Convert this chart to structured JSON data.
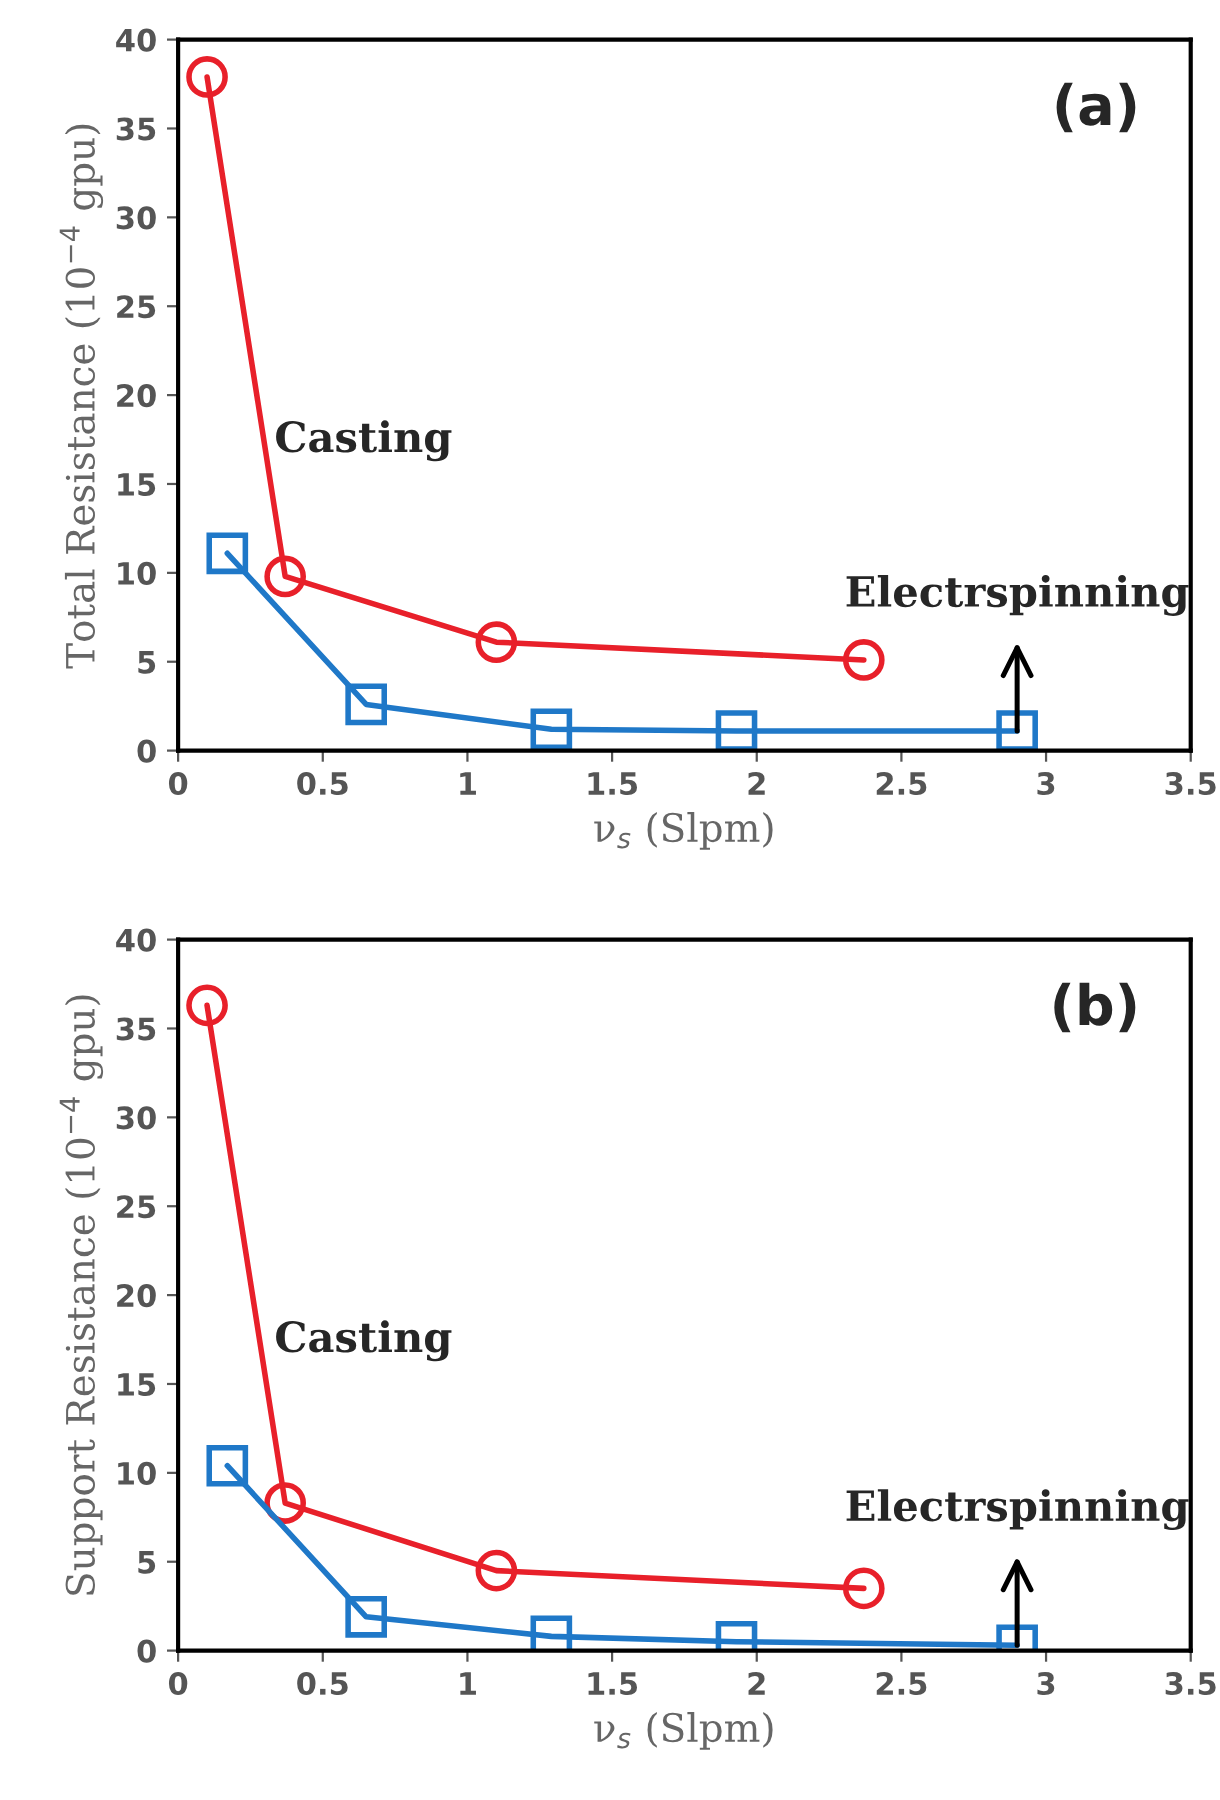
{
  "chart_data": [
    {
      "type": "line",
      "title": "(a)",
      "xlabel": "ν$_{s}$ (Slpm)",
      "ylabel": "Total Resistance (10$^{−4}$ gpu)",
      "xlim": [
        0,
        3.5
      ],
      "xticks": [
        0,
        0.5,
        1,
        1.5,
        2,
        2.5,
        3,
        3.5
      ],
      "ylim": [
        0,
        40
      ],
      "yticks": [
        0,
        5,
        10,
        15,
        20,
        25,
        30,
        35,
        40
      ],
      "grid": false,
      "legend": false,
      "series": [
        {
          "color": "#e8202a",
          "marker": "circle",
          "x": [
            0.1,
            0.37,
            1.1,
            2.37
          ],
          "values": [
            37.9,
            9.8,
            6.1,
            5.1
          ]
        },
        {
          "color": "#1f78c8",
          "marker": "square",
          "x": [
            0.17,
            0.65,
            1.29,
            1.93,
            2.9
          ],
          "values": [
            11.1,
            2.6,
            1.2,
            1.1,
            1.1
          ]
        }
      ],
      "annotations": [
        "Casting",
        {
          "text": "Electrspinning",
          "x": 2.9,
          "y": 1.1
        }
      ]
    },
    {
      "type": "line",
      "title": "(b)",
      "xlabel": "ν$_{s}$ (Slpm)",
      "ylabel": "Support Resistance (10$^{−4}$ gpu)",
      "xlim": [
        0,
        3.5
      ],
      "xticks": [
        0,
        0.5,
        1,
        1.5,
        2,
        2.5,
        3,
        3.5
      ],
      "ylim": [
        0,
        40
      ],
      "yticks": [
        0,
        5,
        10,
        15,
        20,
        25,
        30,
        35,
        40
      ],
      "grid": false,
      "legend": false,
      "series": [
        {
          "color": "#e8202a",
          "marker": "circle",
          "x": [
            0.1,
            0.37,
            1.1,
            2.37
          ],
          "values": [
            36.3,
            8.3,
            4.5,
            3.5
          ]
        },
        {
          "color": "#1f78c8",
          "marker": "square",
          "x": [
            0.17,
            0.65,
            1.29,
            1.93,
            2.9
          ],
          "values": [
            10.4,
            1.9,
            0.8,
            0.5,
            0.3
          ]
        }
      ],
      "annotations": [
        "Casting",
        {
          "text": "Electrspinning",
          "x": 2.9,
          "y": 0.3
        }
      ]
    }
  ]
}
